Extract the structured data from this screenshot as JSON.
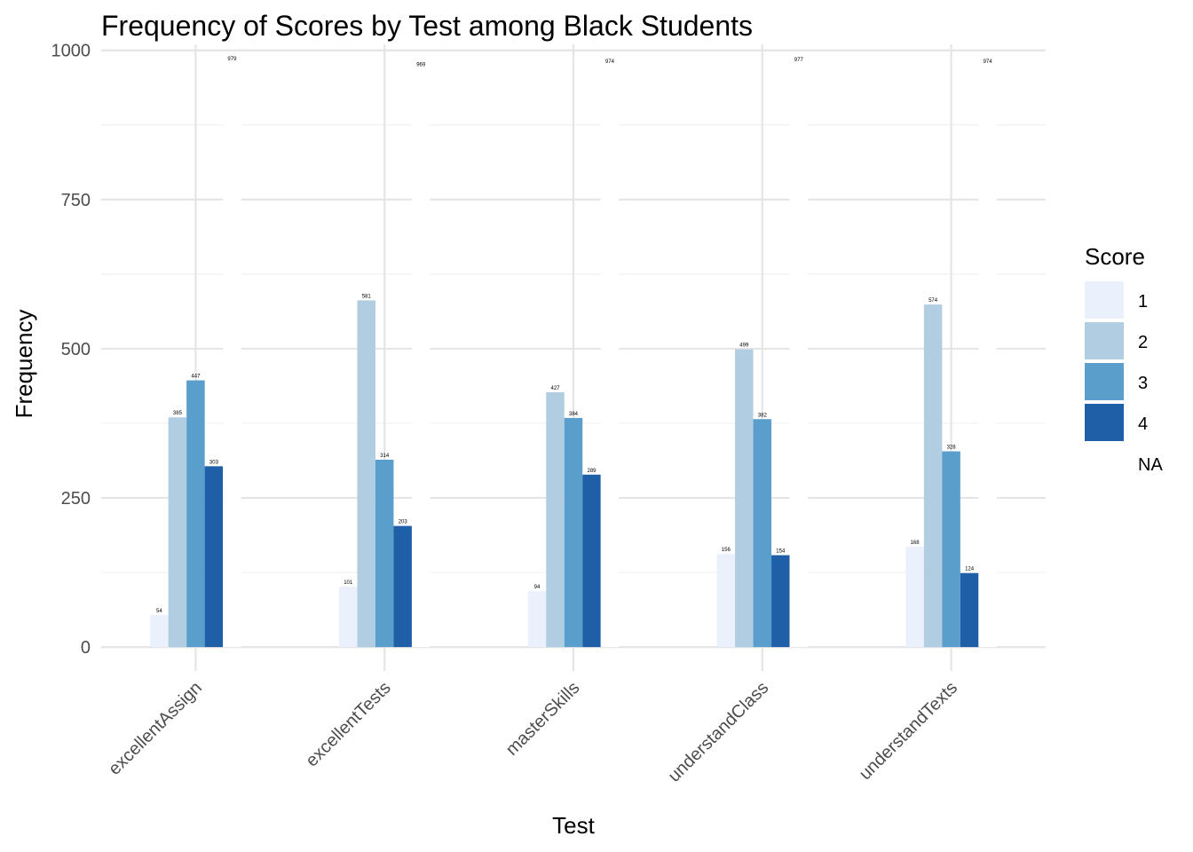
{
  "chart_data": {
    "type": "bar",
    "title": "Frequency of Scores by Test among Black Students",
    "xlabel": "Test",
    "ylabel": "Frequency",
    "ylim": [
      -40,
      1010
    ],
    "yticks": [
      0,
      250,
      500,
      750,
      1000
    ],
    "grid": true,
    "legend": {
      "title": "Score",
      "placement": "right"
    },
    "categories": [
      "excellentAssign",
      "excellentTests",
      "masterSkills",
      "understandClass",
      "understandTexts"
    ],
    "series": [
      {
        "name": "1",
        "color": "#eaf1fc",
        "values": [
          54,
          101,
          94,
          156,
          168
        ]
      },
      {
        "name": "2",
        "color": "#b0cde1",
        "values": [
          385,
          581,
          427,
          499,
          574
        ]
      },
      {
        "name": "3",
        "color": "#5a9fcc",
        "values": [
          447,
          314,
          384,
          382,
          328
        ]
      },
      {
        "name": "4",
        "color": "#1f5fa8",
        "values": [
          303,
          203,
          289,
          154,
          124
        ]
      },
      {
        "name": "NA",
        "color": "#ffffff",
        "values": [
          979,
          969,
          974,
          977,
          974
        ]
      }
    ]
  }
}
